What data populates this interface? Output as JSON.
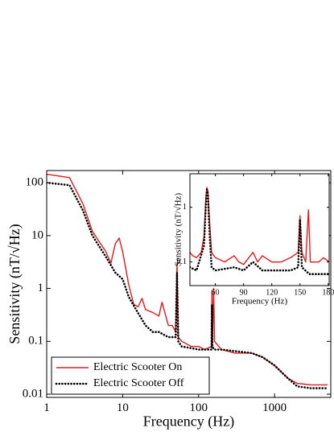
{
  "chart_data": [
    {
      "type": "line",
      "xlabel": "Frequency (Hz)",
      "ylabel": "Sensitivity (nT/√Hz)",
      "xscale": "log",
      "yscale": "log",
      "xlim": [
        1,
        5500
      ],
      "ylim": [
        0.0087,
        170
      ],
      "xticks": [
        1,
        10,
        100,
        1000
      ],
      "yticks": [
        0.01,
        0.1,
        1,
        10,
        100
      ],
      "legend": "lower left",
      "series": [
        {
          "name": "Electric Scooter On",
          "color": "#e41a1c",
          "style": "solid",
          "x": [
            1,
            2,
            3,
            4,
            6,
            7,
            8,
            9,
            10,
            12,
            14,
            16,
            18,
            20,
            25,
            30,
            33,
            40,
            45,
            50,
            52,
            54,
            60,
            80,
            100,
            120,
            148,
            150,
            152,
            158,
            162,
            200,
            300,
            500,
            700,
            1000,
            1500,
            2000,
            3000,
            5000
          ],
          "values": [
            145,
            125,
            40,
            12,
            5,
            3,
            7,
            9,
            5,
            1.2,
            0.5,
            0.45,
            0.65,
            0.4,
            0.35,
            0.3,
            0.55,
            0.2,
            0.2,
            0.15,
            3,
            0.12,
            0.1,
            0.08,
            0.08,
            0.07,
            0.08,
            0.9,
            0.1,
            1.0,
            0.1,
            0.07,
            0.06,
            0.06,
            0.05,
            0.035,
            0.02,
            0.016,
            0.015,
            0.015
          ]
        },
        {
          "name": "Electric Scooter Off",
          "color": "#000000",
          "style": "dotted",
          "x": [
            1,
            2,
            3,
            4,
            6,
            8,
            10,
            12,
            15,
            20,
            25,
            30,
            40,
            50,
            52,
            54,
            60,
            100,
            148,
            150,
            152,
            160,
            200,
            500,
            700,
            1000,
            1500,
            2000,
            3000,
            5000
          ],
          "values": [
            100,
            90,
            30,
            10,
            4,
            2,
            1.5,
            0.7,
            0.4,
            0.2,
            0.15,
            0.15,
            0.12,
            0.12,
            2,
            0.1,
            0.08,
            0.07,
            0.07,
            0.5,
            0.08,
            0.07,
            0.07,
            0.06,
            0.05,
            0.035,
            0.02,
            0.014,
            0.013,
            0.013
          ]
        }
      ]
    },
    {
      "type": "line",
      "xlabel": "Frequency (Hz)",
      "ylabel": "Sensitivity (nT/√Hz)",
      "xscale": "linear",
      "yscale": "log",
      "xlim": [
        33,
        181
      ],
      "ylim": [
        0.037,
        4.1
      ],
      "xticks": [
        60,
        90,
        120,
        150,
        180
      ],
      "yticks": [
        0.1,
        1
      ],
      "series": [
        {
          "color": "#e41a1c",
          "style": "solid",
          "x": [
            33,
            36,
            40,
            45,
            48,
            50,
            51,
            52,
            54,
            56,
            60,
            70,
            80,
            85,
            90,
            100,
            105,
            110,
            120,
            130,
            140,
            148,
            150,
            152,
            156,
            159,
            161,
            170,
            175,
            181
          ],
          "values": [
            0.15,
            0.13,
            0.12,
            0.15,
            0.3,
            1.5,
            2.3,
            2.0,
            0.5,
            0.15,
            0.12,
            0.1,
            0.13,
            0.1,
            0.09,
            0.15,
            0.1,
            0.13,
            0.1,
            0.1,
            0.12,
            0.15,
            0.7,
            0.15,
            0.1,
            0.9,
            0.1,
            0.1,
            0.12,
            0.1
          ]
        },
        {
          "color": "#000000",
          "style": "dotted",
          "x": [
            33,
            40,
            48,
            50,
            51,
            52,
            54,
            56,
            60,
            80,
            90,
            100,
            110,
            120,
            140,
            148,
            150,
            152,
            160,
            181
          ],
          "values": [
            0.08,
            0.07,
            0.2,
            1.2,
            2.1,
            1.8,
            0.3,
            0.08,
            0.07,
            0.08,
            0.07,
            0.1,
            0.07,
            0.07,
            0.07,
            0.08,
            0.6,
            0.08,
            0.06,
            0.06
          ]
        }
      ]
    }
  ]
}
